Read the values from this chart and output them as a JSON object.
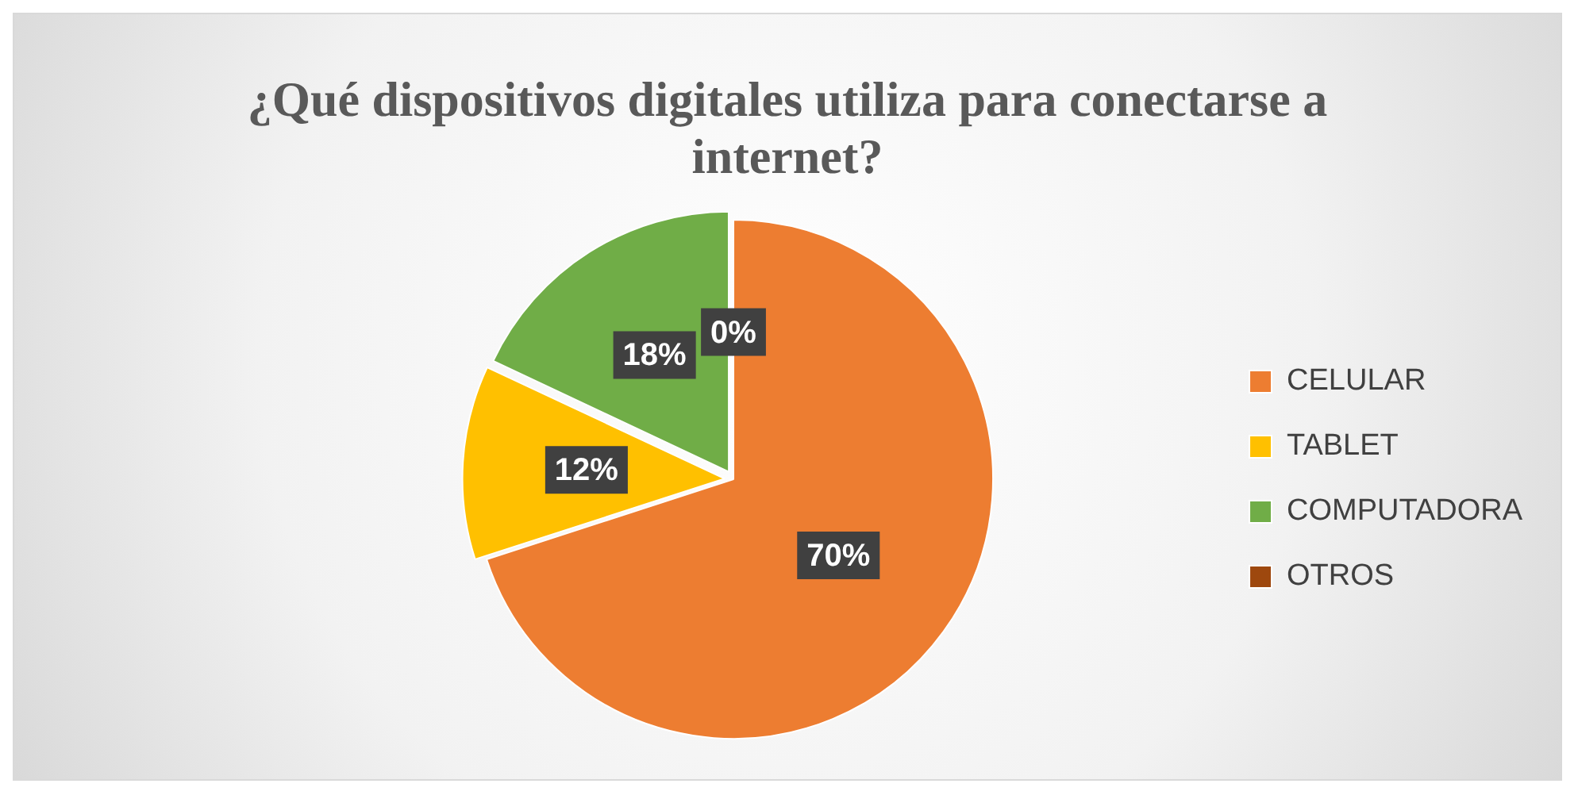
{
  "chart_data": {
    "type": "pie",
    "title": "¿Qué dispositivos digitales utiliza para conectarse a internet?",
    "categories": [
      "CELULAR",
      "TABLET",
      "COMPUTADORA",
      "OTROS"
    ],
    "values": [
      70,
      12,
      18,
      0
    ],
    "colors": [
      "#ed7d31",
      "#ffc000",
      "#70ad47",
      "#9e480e"
    ],
    "value_labels": [
      "70%",
      "12%",
      "18%",
      "0%"
    ],
    "legend": "right"
  }
}
